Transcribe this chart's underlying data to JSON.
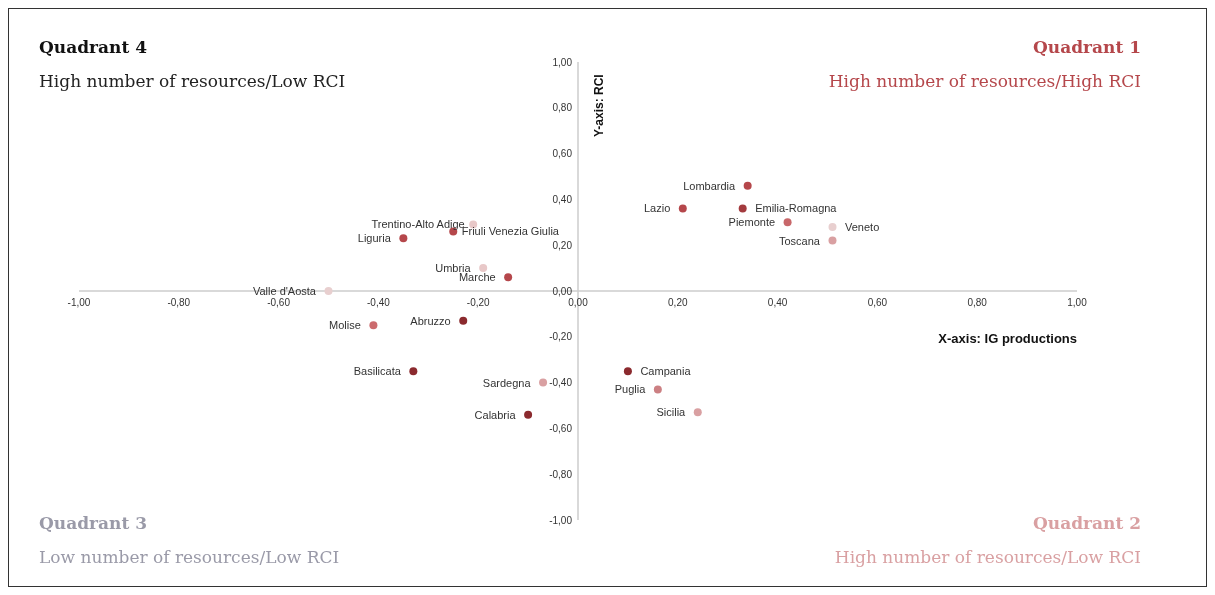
{
  "chart_data": {
    "type": "scatter",
    "xlabel": "X-axis: IG productions",
    "ylabel": "Y-axis: RCI",
    "xlim": [
      -1,
      1
    ],
    "ylim": [
      -1,
      1
    ],
    "xticks": [
      {
        "value": -1,
        "label": "-1,00"
      },
      {
        "value": -0.8,
        "label": "-0,80"
      },
      {
        "value": -0.6,
        "label": "-0,60"
      },
      {
        "value": -0.4,
        "label": "-0,40"
      },
      {
        "value": -0.2,
        "label": "-0,20"
      },
      {
        "value": 0,
        "label": "0,00"
      },
      {
        "value": 0.2,
        "label": "0,20"
      },
      {
        "value": 0.4,
        "label": "0,40"
      },
      {
        "value": 0.6,
        "label": "0,60"
      },
      {
        "value": 0.8,
        "label": "0,80"
      },
      {
        "value": 1,
        "label": "1,00"
      }
    ],
    "yticks": [
      {
        "value": -1,
        "label": "-1,00"
      },
      {
        "value": -0.8,
        "label": "-0,80"
      },
      {
        "value": -0.6,
        "label": "-0,60"
      },
      {
        "value": -0.4,
        "label": "-0,40"
      },
      {
        "value": -0.2,
        "label": "-0,20"
      },
      {
        "value": 0,
        "label": "0,00"
      },
      {
        "value": 0.2,
        "label": "0,20"
      },
      {
        "value": 0.4,
        "label": "0,40"
      },
      {
        "value": 0.6,
        "label": "0,60"
      },
      {
        "value": 0.8,
        "label": "0,80"
      },
      {
        "value": 1,
        "label": "1,00"
      }
    ],
    "grid": false,
    "marker": "circle",
    "series": [
      {
        "name": "Lombardia",
        "color": "#b5474b",
        "x": [
          0.34
        ],
        "values": [
          0.46
        ]
      },
      {
        "name": "Lazio",
        "color": "#b5474b",
        "x": [
          0.21
        ],
        "values": [
          0.36
        ]
      },
      {
        "name": "Emilia-Romagna",
        "color": "#a33a3e",
        "x": [
          0.33
        ],
        "values": [
          0.36
        ]
      },
      {
        "name": "Piemonte",
        "color": "#c8676a",
        "x": [
          0.42
        ],
        "values": [
          0.3
        ]
      },
      {
        "name": "Veneto",
        "color": "#e8cfcf",
        "x": [
          0.51
        ],
        "values": [
          0.28
        ]
      },
      {
        "name": "Toscana",
        "color": "#d9a0a2",
        "x": [
          0.51
        ],
        "values": [
          0.22
        ]
      },
      {
        "name": "Trentino-Alto Adige",
        "color": "#e8c8c8",
        "x": [
          -0.21
        ],
        "values": [
          0.29
        ]
      },
      {
        "name": "Friuli Venezia Giulia",
        "color": "#b5474b",
        "x": [
          -0.25
        ],
        "values": [
          0.26
        ]
      },
      {
        "name": "Liguria",
        "color": "#b5474b",
        "x": [
          -0.35
        ],
        "values": [
          0.23
        ]
      },
      {
        "name": "Umbria",
        "color": "#e8c8c8",
        "x": [
          -0.19
        ],
        "values": [
          0.1
        ]
      },
      {
        "name": "Marche",
        "color": "#b5474b",
        "x": [
          -0.14
        ],
        "values": [
          0.06
        ]
      },
      {
        "name": "Valle d'Aosta",
        "color": "#e8cfcf",
        "x": [
          -0.5
        ],
        "values": [
          0.0
        ]
      },
      {
        "name": "Molise",
        "color": "#cc6b6e",
        "x": [
          -0.41
        ],
        "values": [
          -0.15
        ]
      },
      {
        "name": "Abruzzo",
        "color": "#8b2a2e",
        "x": [
          -0.23
        ],
        "values": [
          -0.13
        ]
      },
      {
        "name": "Basilicata",
        "color": "#8b2a2e",
        "x": [
          -0.33
        ],
        "values": [
          -0.35
        ]
      },
      {
        "name": "Sardegna",
        "color": "#d9a0a2",
        "x": [
          -0.07
        ],
        "values": [
          -0.4
        ]
      },
      {
        "name": "Calabria",
        "color": "#8b2a2e",
        "x": [
          -0.1
        ],
        "values": [
          -0.54
        ]
      },
      {
        "name": "Campania",
        "color": "#8b2a2e",
        "x": [
          0.1
        ],
        "values": [
          -0.35
        ]
      },
      {
        "name": "Puglia",
        "color": "#cc8083",
        "x": [
          0.16
        ],
        "values": [
          -0.43
        ]
      },
      {
        "name": "Sicilia",
        "color": "#d9a0a2",
        "x": [
          0.24
        ],
        "values": [
          -0.53
        ]
      }
    ],
    "annotations": [
      "Quadrant 4",
      "High number of resources/Low RCI",
      "Quadrant 1",
      "High number of resources/High RCI",
      "Quadrant 3",
      "Low number of resources/Low RCI",
      "Quadrant 2",
      "High number of resources/Low RCI"
    ]
  }
}
